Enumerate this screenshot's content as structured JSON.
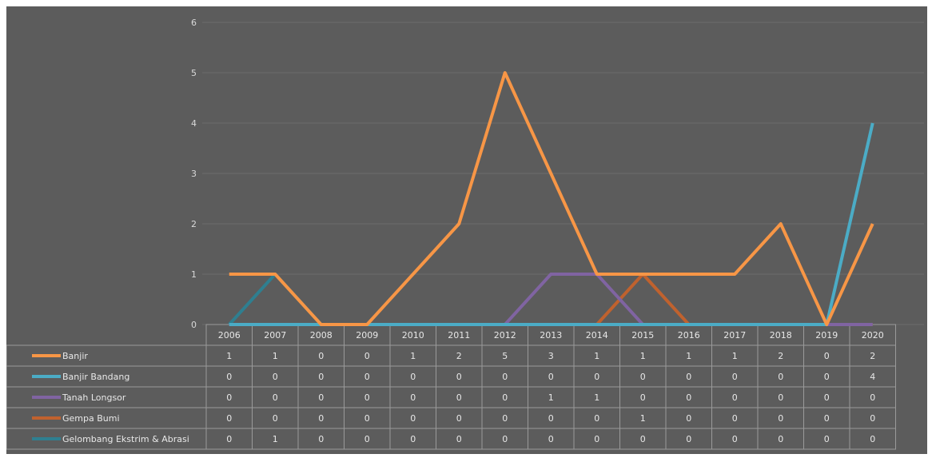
{
  "chart_data": {
    "type": "line",
    "title": "",
    "xlabel": "",
    "ylabel": "",
    "ylim": [
      0,
      6
    ],
    "y_ticks": [
      "0",
      "1",
      "2",
      "3",
      "4",
      "5",
      "6"
    ],
    "grid": true,
    "legend": "data-table",
    "categories": [
      "2006",
      "2007",
      "2008",
      "2009",
      "2010",
      "2011",
      "2012",
      "2013",
      "2014",
      "2015",
      "2016",
      "2017",
      "2018",
      "2019",
      "2020"
    ],
    "series": [
      {
        "name": "Banjir",
        "color": "#f79646",
        "values": [
          1,
          1,
          0,
          0,
          1,
          2,
          5,
          3,
          1,
          1,
          1,
          1,
          2,
          0,
          2
        ]
      },
      {
        "name": "Banjir Bandang",
        "color": "#4bacc6",
        "values": [
          0,
          0,
          0,
          0,
          0,
          0,
          0,
          0,
          0,
          0,
          0,
          0,
          0,
          0,
          4
        ]
      },
      {
        "name": "Tanah Longsor",
        "color": "#8064a2",
        "values": [
          0,
          0,
          0,
          0,
          0,
          0,
          0,
          1,
          1,
          0,
          0,
          0,
          0,
          0,
          0
        ]
      },
      {
        "name": "Gempa Bumi",
        "color": "#c0622e",
        "values": [
          0,
          0,
          0,
          0,
          0,
          0,
          0,
          0,
          0,
          1,
          0,
          0,
          0,
          0,
          0
        ]
      },
      {
        "name": "Gelombang Ekstrim & Abrasi",
        "color": "#2f7f90",
        "values": [
          0,
          1,
          0,
          0,
          0,
          0,
          0,
          0,
          0,
          0,
          0,
          0,
          0,
          0,
          0
        ]
      }
    ]
  }
}
